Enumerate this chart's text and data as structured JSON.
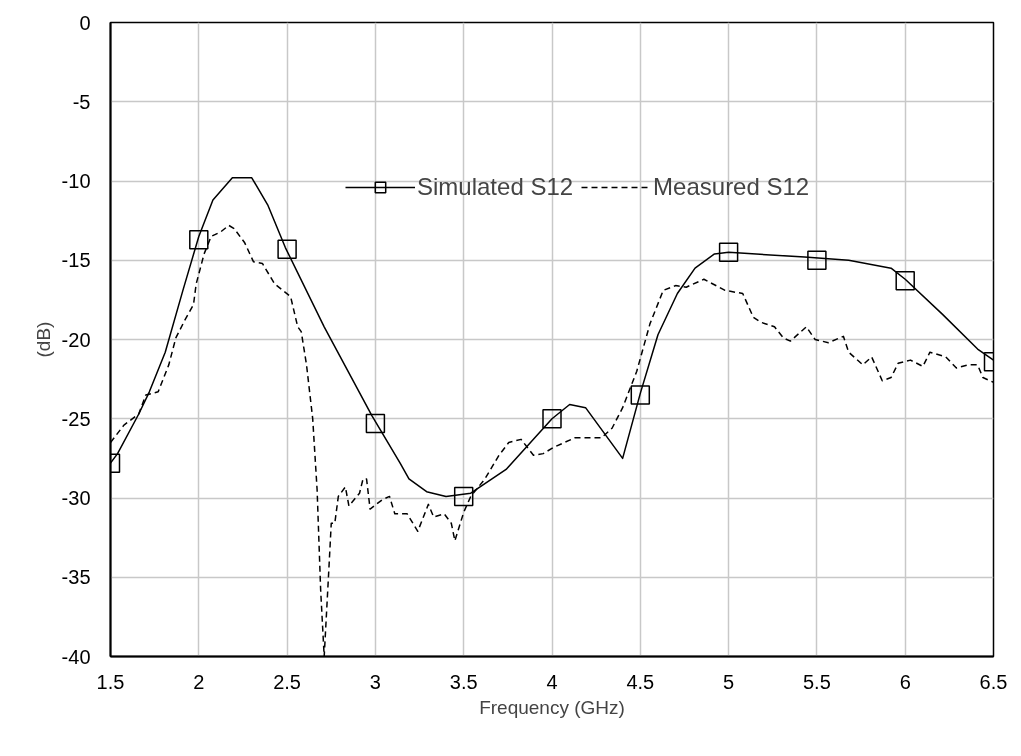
{
  "chart_data": {
    "type": "line",
    "xlabel": "Frequency (GHz)",
    "ylabel": "(dB)",
    "xlim": [
      1.5,
      6.5
    ],
    "xticks": [
      1.5,
      2,
      2.5,
      3,
      3.5,
      4,
      4.5,
      5,
      5.5,
      6,
      6.5
    ],
    "ylim": [
      -40,
      0
    ],
    "yticks": [
      -40,
      -35,
      -30,
      -25,
      -20,
      -15,
      -10,
      -5,
      0
    ],
    "grid": true,
    "legend": "top right",
    "series": [
      {
        "name": "Simulated S12",
        "color": "#000000",
        "line_style": "solid",
        "x": [
          1.5,
          1.54,
          1.66,
          1.72,
          1.81,
          1.91,
          2.0,
          2.08,
          2.19,
          2.3,
          2.39,
          2.49,
          2.71,
          2.98,
          3.14,
          3.19,
          3.29,
          3.4,
          3.54,
          3.74,
          4.0,
          4.1,
          4.19,
          4.4,
          4.5,
          4.6,
          4.71,
          4.81,
          4.92,
          5.0,
          5.43,
          5.68,
          5.92,
          6.0,
          6.21,
          6.41,
          6.5
        ],
        "values": [
          -27.8,
          -27.2,
          -24.7,
          -23.3,
          -20.8,
          -16.9,
          -13.5,
          -11.2,
          -9.8,
          -9.8,
          -11.5,
          -14.2,
          -19.2,
          -24.8,
          -27.8,
          -28.8,
          -29.6,
          -29.9,
          -29.7,
          -28.2,
          -25.0,
          -24.1,
          -24.3,
          -27.5,
          -23.4,
          -19.7,
          -17.1,
          -15.5,
          -14.6,
          -14.5,
          -14.8,
          -15.0,
          -15.5,
          -16.2,
          -18.4,
          -20.6,
          -21.3
        ]
      },
      {
        "type": "scatter",
        "color": "#000000",
        "marker": "square",
        "x": [
          1.5,
          2,
          2.5,
          3,
          3.5,
          4,
          4.5,
          5,
          5.5,
          6,
          6.5
        ],
        "values": [
          -27.8,
          -13.7,
          -14.3,
          -25.3,
          -29.9,
          -25,
          -23.5,
          -14.5,
          -15,
          -16.3,
          -21.4
        ]
      },
      {
        "name": "Measured S12",
        "color": "#000000",
        "line_style": "dashed",
        "x": [
          1.5,
          1.576,
          1.66,
          1.7,
          1.77,
          1.83,
          1.87,
          1.92,
          1.97,
          1.985,
          2.03,
          2.07,
          2.125,
          2.17,
          2.2,
          2.26,
          2.31,
          2.36,
          2.43,
          2.475,
          2.52,
          2.56,
          2.58,
          2.61,
          2.645,
          2.67,
          2.69,
          2.71,
          2.735,
          2.75,
          2.77,
          2.79,
          2.83,
          2.85,
          2.91,
          2.93,
          2.95,
          2.97,
          3.04,
          3.08,
          3.11,
          3.18,
          3.24,
          3.3,
          3.33,
          3.39,
          3.43,
          3.45,
          3.5,
          3.54,
          3.62,
          3.7,
          3.755,
          3.825,
          3.895,
          3.95,
          4.01,
          4.13,
          4.28,
          4.34,
          4.4,
          4.48,
          4.555,
          4.63,
          4.7,
          4.76,
          4.86,
          4.98,
          5.08,
          5.14,
          5.18,
          5.26,
          5.31,
          5.35,
          5.44,
          5.49,
          5.565,
          5.65,
          5.68,
          5.76,
          5.81,
          5.87,
          5.92,
          5.96,
          6.03,
          6.1,
          6.14,
          6.23,
          6.29,
          6.355,
          6.41,
          6.44,
          6.5
        ],
        "values": [
          -26.5,
          -25.4,
          -24.7,
          -23.5,
          -23.3,
          -21.6,
          -19.9,
          -18.8,
          -17.8,
          -16.5,
          -14.6,
          -13.5,
          -13.2,
          -12.8,
          -13.0,
          -13.9,
          -15.1,
          -15.2,
          -16.5,
          -16.9,
          -17.3,
          -19.2,
          -19.5,
          -21.6,
          -25.0,
          -29.5,
          -35.8,
          -40.0,
          -34.8,
          -31.6,
          -31.6,
          -29.9,
          -29.3,
          -30.5,
          -29.7,
          -28.8,
          -28.8,
          -30.7,
          -30.1,
          -29.9,
          -31.0,
          -31.0,
          -32.1,
          -30.4,
          -31.2,
          -31.0,
          -31.6,
          -32.7,
          -30.9,
          -29.9,
          -28.8,
          -27.3,
          -26.5,
          -26.3,
          -27.3,
          -27.2,
          -26.8,
          -26.2,
          -26.2,
          -25.6,
          -24.3,
          -22.0,
          -19.0,
          -16.9,
          -16.6,
          -16.7,
          -16.2,
          -16.9,
          -17.1,
          -18.6,
          -18.9,
          -19.2,
          -19.9,
          -20.1,
          -19.2,
          -20.0,
          -20.2,
          -19.8,
          -20.8,
          -21.6,
          -21.1,
          -22.6,
          -22.4,
          -21.5,
          -21.3,
          -21.7,
          -20.8,
          -21.1,
          -21.8,
          -21.6,
          -21.6,
          -22.4,
          -22.7
        ]
      }
    ]
  }
}
